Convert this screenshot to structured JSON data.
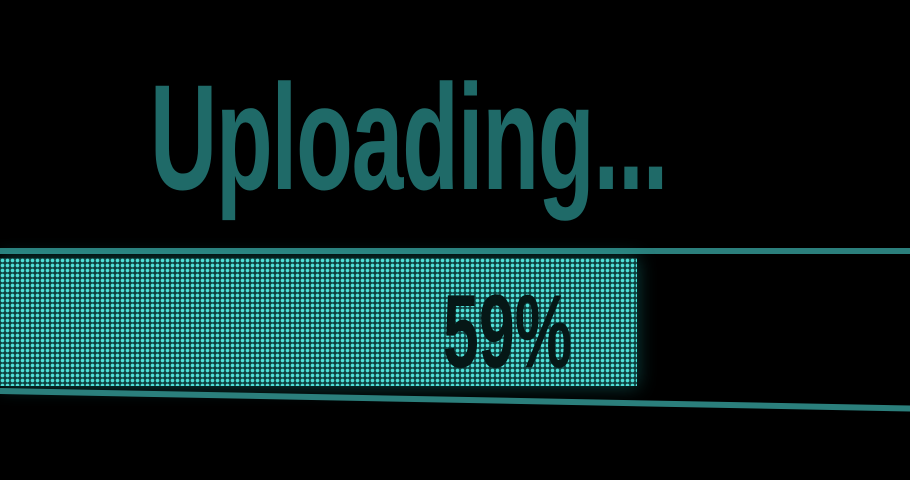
{
  "title": "Uploading...",
  "progress": {
    "label": "59%",
    "value": 0.59
  },
  "colors": {
    "background": "#000000",
    "title": "#1f6a68",
    "rail": "#2b7f7c",
    "fill_dots": "#4fe0d8",
    "percent_text": "#061716"
  }
}
